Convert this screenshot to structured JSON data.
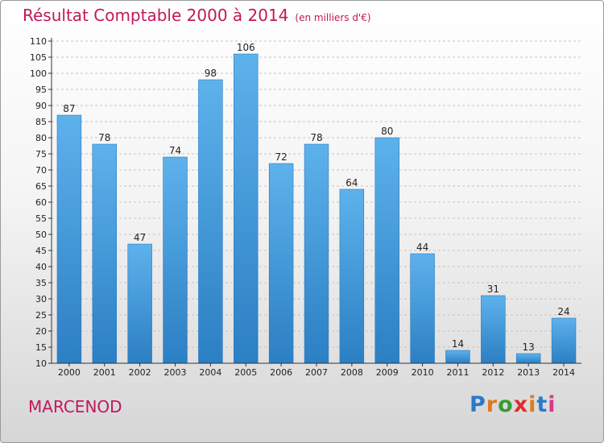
{
  "title": "Résultat Comptable 2000 à 2014",
  "subtitle": "(en milliers d'€)",
  "town": "MARCENOD",
  "logo": {
    "letters": [
      "P",
      "r",
      "o",
      "x",
      "i",
      "t",
      "i"
    ],
    "colors": [
      "#2c79c9",
      "#e07a1f",
      "#3a9a34",
      "#e02c2c",
      "#e07a1f",
      "#2c79c9",
      "#d63a8a"
    ]
  },
  "colors": {
    "bar": "#3f97d8",
    "accent": "#c2185b"
  },
  "chart_data": {
    "type": "bar",
    "title": "Résultat Comptable 2000 à 2014",
    "categories": [
      "2000",
      "2001",
      "2002",
      "2003",
      "2004",
      "2005",
      "2006",
      "2007",
      "2008",
      "2009",
      "2010",
      "2011",
      "2012",
      "2013",
      "2014"
    ],
    "values": [
      87,
      78,
      47,
      74,
      98,
      106,
      72,
      78,
      64,
      80,
      44,
      14,
      31,
      13,
      24
    ],
    "ylim": [
      10,
      110
    ],
    "yticks": [
      10,
      15,
      20,
      25,
      30,
      35,
      40,
      45,
      50,
      55,
      60,
      65,
      70,
      75,
      80,
      85,
      90,
      95,
      100,
      105,
      110
    ],
    "grid": true,
    "xlabel": "",
    "ylabel": ""
  }
}
